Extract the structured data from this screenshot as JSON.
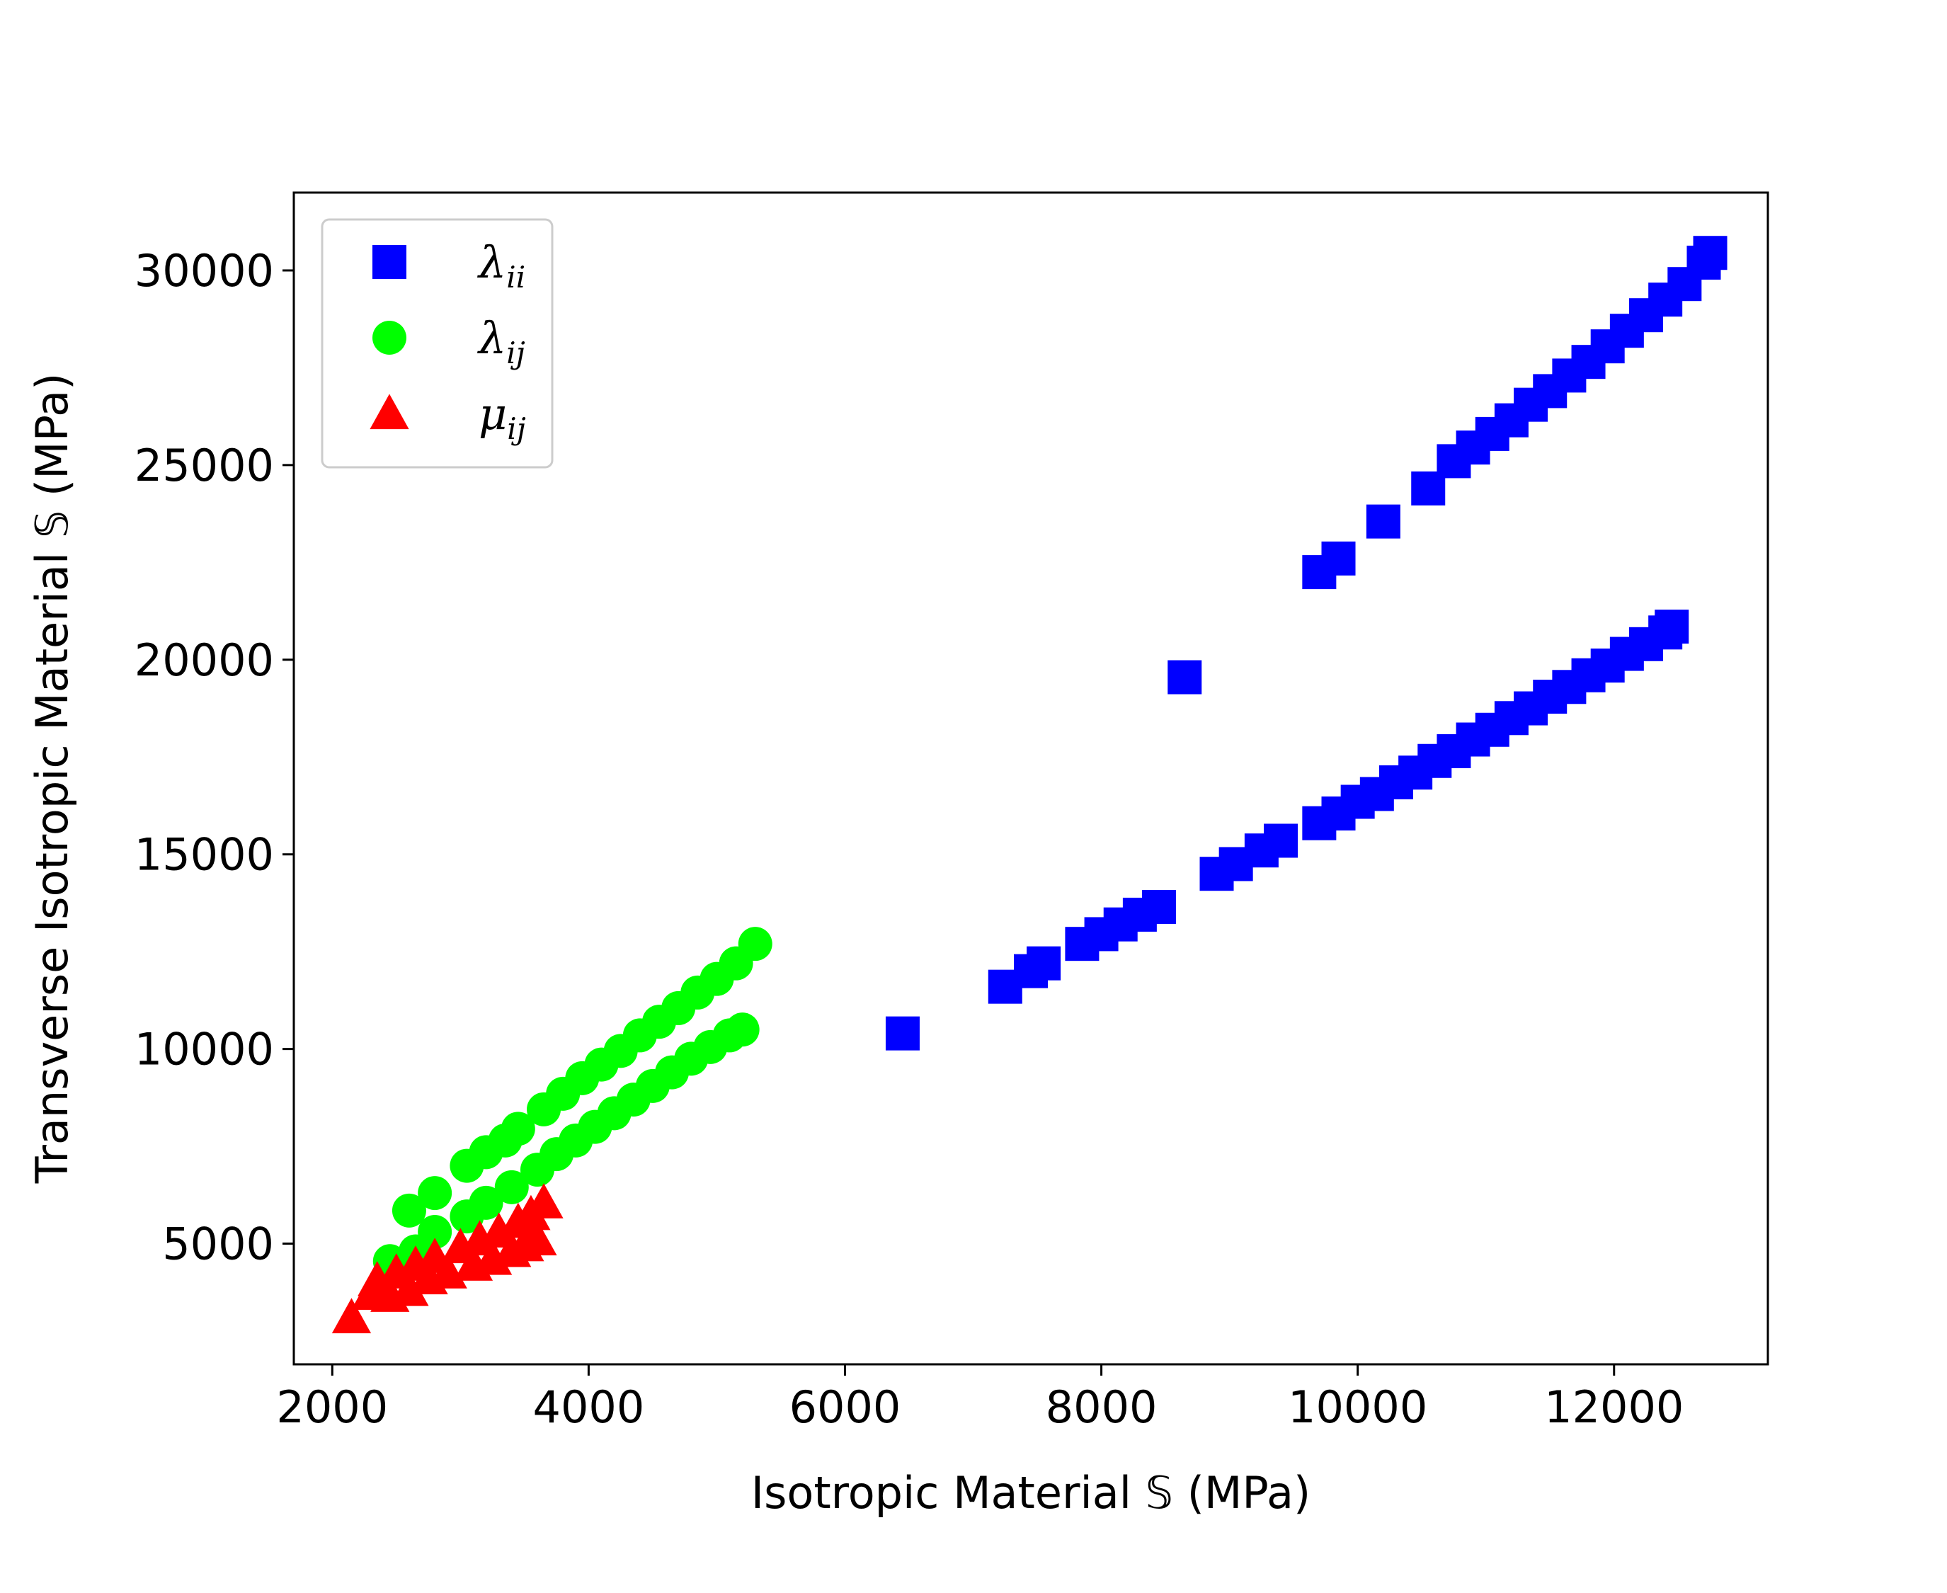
{
  "chart_data": {
    "type": "scatter",
    "xlabel": "Isotropic Material 𝕊 (MPa)",
    "ylabel": "Transverse Isotropic Material 𝕊 (MPa)",
    "xlim": [
      1700,
      13200
    ],
    "ylim": [
      1900,
      32000
    ],
    "xticks": [
      2000,
      4000,
      6000,
      8000,
      10000,
      12000
    ],
    "yticks": [
      5000,
      10000,
      15000,
      20000,
      25000,
      30000
    ],
    "xtick_labels": [
      "2000",
      "4000",
      "6000",
      "8000",
      "10000",
      "12000"
    ],
    "ytick_labels": [
      "5000",
      "10000",
      "15000",
      "20000",
      "25000",
      "30000"
    ],
    "grid": false,
    "legend_position": "upper-left",
    "series": [
      {
        "name": "λ_ii",
        "label_main": "λ",
        "label_sub": "ii",
        "marker": "square",
        "color": "#0000ff",
        "points": [
          [
            6450,
            10400
          ],
          [
            7250,
            11600
          ],
          [
            7450,
            12000
          ],
          [
            7550,
            12200
          ],
          [
            7850,
            12700
          ],
          [
            8000,
            12950
          ],
          [
            8150,
            13200
          ],
          [
            8300,
            13450
          ],
          [
            8450,
            13650
          ],
          [
            8900,
            14500
          ],
          [
            9050,
            14750
          ],
          [
            9250,
            15100
          ],
          [
            9400,
            15350
          ],
          [
            9700,
            15800
          ],
          [
            9850,
            16050
          ],
          [
            10000,
            16350
          ],
          [
            10150,
            16550
          ],
          [
            10300,
            16850
          ],
          [
            10450,
            17100
          ],
          [
            10600,
            17400
          ],
          [
            10750,
            17650
          ],
          [
            10900,
            17950
          ],
          [
            11050,
            18200
          ],
          [
            11200,
            18500
          ],
          [
            11350,
            18750
          ],
          [
            11500,
            19050
          ],
          [
            11650,
            19300
          ],
          [
            11800,
            19600
          ],
          [
            11950,
            19850
          ],
          [
            12100,
            20150
          ],
          [
            12250,
            20400
          ],
          [
            12400,
            20700
          ],
          [
            12450,
            20850
          ],
          [
            8650,
            19550
          ],
          [
            9700,
            22250
          ],
          [
            9850,
            22600
          ],
          [
            10200,
            23550
          ],
          [
            10550,
            24400
          ],
          [
            10750,
            25100
          ],
          [
            10900,
            25450
          ],
          [
            11050,
            25800
          ],
          [
            11200,
            26150
          ],
          [
            11350,
            26550
          ],
          [
            11500,
            26900
          ],
          [
            11650,
            27300
          ],
          [
            11800,
            27650
          ],
          [
            11950,
            28050
          ],
          [
            12100,
            28450
          ],
          [
            12250,
            28850
          ],
          [
            12400,
            29250
          ],
          [
            12550,
            29650
          ],
          [
            12700,
            30200
          ],
          [
            12750,
            30450
          ]
        ]
      },
      {
        "name": "λ_ij",
        "label_main": "λ",
        "label_sub": "ij",
        "marker": "circle",
        "color": "#00ff00",
        "points": [
          [
            2450,
            4550
          ],
          [
            2600,
            5850
          ],
          [
            2800,
            6300
          ],
          [
            3050,
            7000
          ],
          [
            3200,
            7350
          ],
          [
            3350,
            7650
          ],
          [
            3450,
            7950
          ],
          [
            3650,
            8450
          ],
          [
            3800,
            8850
          ],
          [
            3950,
            9250
          ],
          [
            4100,
            9600
          ],
          [
            4250,
            9950
          ],
          [
            4400,
            10350
          ],
          [
            4550,
            10700
          ],
          [
            4700,
            11050
          ],
          [
            4850,
            11450
          ],
          [
            5000,
            11800
          ],
          [
            5150,
            12200
          ],
          [
            5300,
            12700
          ],
          [
            2650,
            4800
          ],
          [
            2800,
            5300
          ],
          [
            3050,
            5700
          ],
          [
            3200,
            6050
          ],
          [
            3400,
            6450
          ],
          [
            3600,
            6900
          ],
          [
            3750,
            7300
          ],
          [
            3900,
            7650
          ],
          [
            4050,
            8000
          ],
          [
            4200,
            8350
          ],
          [
            4350,
            8700
          ],
          [
            4500,
            9050
          ],
          [
            4650,
            9400
          ],
          [
            4800,
            9750
          ],
          [
            4950,
            10050
          ],
          [
            5100,
            10350
          ],
          [
            5200,
            10500
          ]
        ]
      },
      {
        "name": "μ_ij",
        "label_main": "μ",
        "label_sub": "ij",
        "marker": "triangle",
        "color": "#ff0000",
        "points": [
          [
            2150,
            3100
          ],
          [
            2300,
            3700
          ],
          [
            2350,
            4050
          ],
          [
            2450,
            3650
          ],
          [
            2500,
            4250
          ],
          [
            2600,
            3800
          ],
          [
            2650,
            4450
          ],
          [
            2750,
            4100
          ],
          [
            2800,
            4650
          ],
          [
            2900,
            4250
          ],
          [
            3000,
            4900
          ],
          [
            3100,
            4450
          ],
          [
            3150,
            5100
          ],
          [
            3250,
            4600
          ],
          [
            3300,
            5300
          ],
          [
            3400,
            4800
          ],
          [
            3450,
            5550
          ],
          [
            3500,
            4950
          ],
          [
            3550,
            5750
          ],
          [
            3600,
            5100
          ],
          [
            3650,
            6050
          ]
        ]
      }
    ]
  }
}
